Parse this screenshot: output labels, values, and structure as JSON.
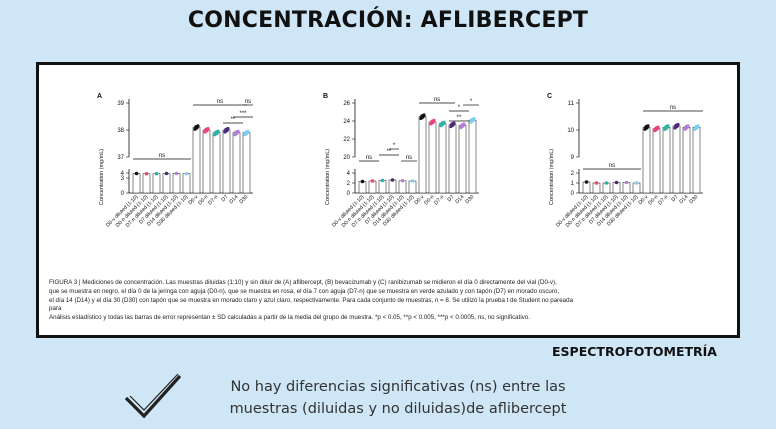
{
  "title": "CONCENTRACIÓN: AFLIBERCEPT",
  "method_label": "ESPECTROFOTOMETRÍA",
  "conclusion": {
    "line1": "No hay diferencias significativas (ns) entre las",
    "line2": "muestras (diluidas y no diluidas)de aflibercept"
  },
  "icons": {
    "check": "check-mark-icon"
  },
  "caption": {
    "line1": "FIGURA 3 | Mediciones de concentración. Las muestras diluidas (1:10) y sin diluir de (A) aflibercept, (B) bevacizumab y (C) ranibizumab se midieron el día 0 directamente del vial (D0-v),",
    "line2": "que se muestra en negro, el día 0 de la jeringa con aguja (D0-n), que se muestra en rosa, el día 7 con aguja (D7-n) que se muestra en verde azulado y con tapón (D7) en morado oscuro,",
    "line3": "el día 14 (D14) y el día 30 (D30) con tapón que se muestra en morado claro y azul claro, respectivamente. Para cada conjunto de muestras, n = 8. Se utilizó la prueba t de Student no pareada",
    "line4": "para",
    "line5": "Análisis estadístico y todas las barras de error representan ± SD calculadas a partir de la media del grupo de muestra. *p < 0.05, **p < 0.005, ***p < 0.0005, ns, no significativo."
  },
  "colors": [
    "#111111",
    "#e8447a",
    "#2ab3a6",
    "#4b2a7a",
    "#b47fd6",
    "#7fd0ee"
  ],
  "categories": [
    "D0-v diluted (1:10)",
    "D0-n diluted (1:10)",
    "D7-n diluted (1:10)",
    "D7 diluted (1:10)",
    "D14 diluted (1:10)",
    "D30 diluted (1:10)",
    "D0-v",
    "D0-n",
    "D7-n",
    "D7",
    "D14",
    "D30"
  ],
  "panels": [
    {
      "letter": "A",
      "ylabel": "Concentration (mg/mL)",
      "lower_ticks": [
        0,
        3,
        4
      ],
      "upper_ticks": [
        37,
        38,
        39
      ],
      "values": [
        3.9,
        3.85,
        3.85,
        3.9,
        3.9,
        3.85,
        38.1,
        38.0,
        37.9,
        38.0,
        37.9,
        37.9
      ],
      "annotations": [
        "ns",
        "ns",
        "***",
        "ns",
        "**"
      ]
    },
    {
      "letter": "B",
      "ylabel": "Concentration (mg/mL)",
      "lower_ticks": [
        0,
        2,
        4
      ],
      "upper_ticks": [
        20,
        22,
        24,
        26
      ],
      "values": [
        2.3,
        2.4,
        2.5,
        2.6,
        2.45,
        2.4,
        24.5,
        23.9,
        23.7,
        23.6,
        23.5,
        24.1
      ],
      "annotations": [
        "ns",
        "**",
        "*",
        "ns",
        "ns",
        "*",
        "**",
        "*"
      ]
    },
    {
      "letter": "C",
      "ylabel": "Concentration (mg/mL)",
      "lower_ticks": [
        0,
        1,
        2
      ],
      "upper_ticks": [
        9,
        10,
        11
      ],
      "values": [
        1.1,
        1.0,
        1.0,
        1.05,
        1.05,
        1.0,
        10.1,
        10.05,
        10.1,
        10.15,
        10.1,
        10.1
      ],
      "annotations": [
        "ns",
        "ns"
      ]
    }
  ]
}
